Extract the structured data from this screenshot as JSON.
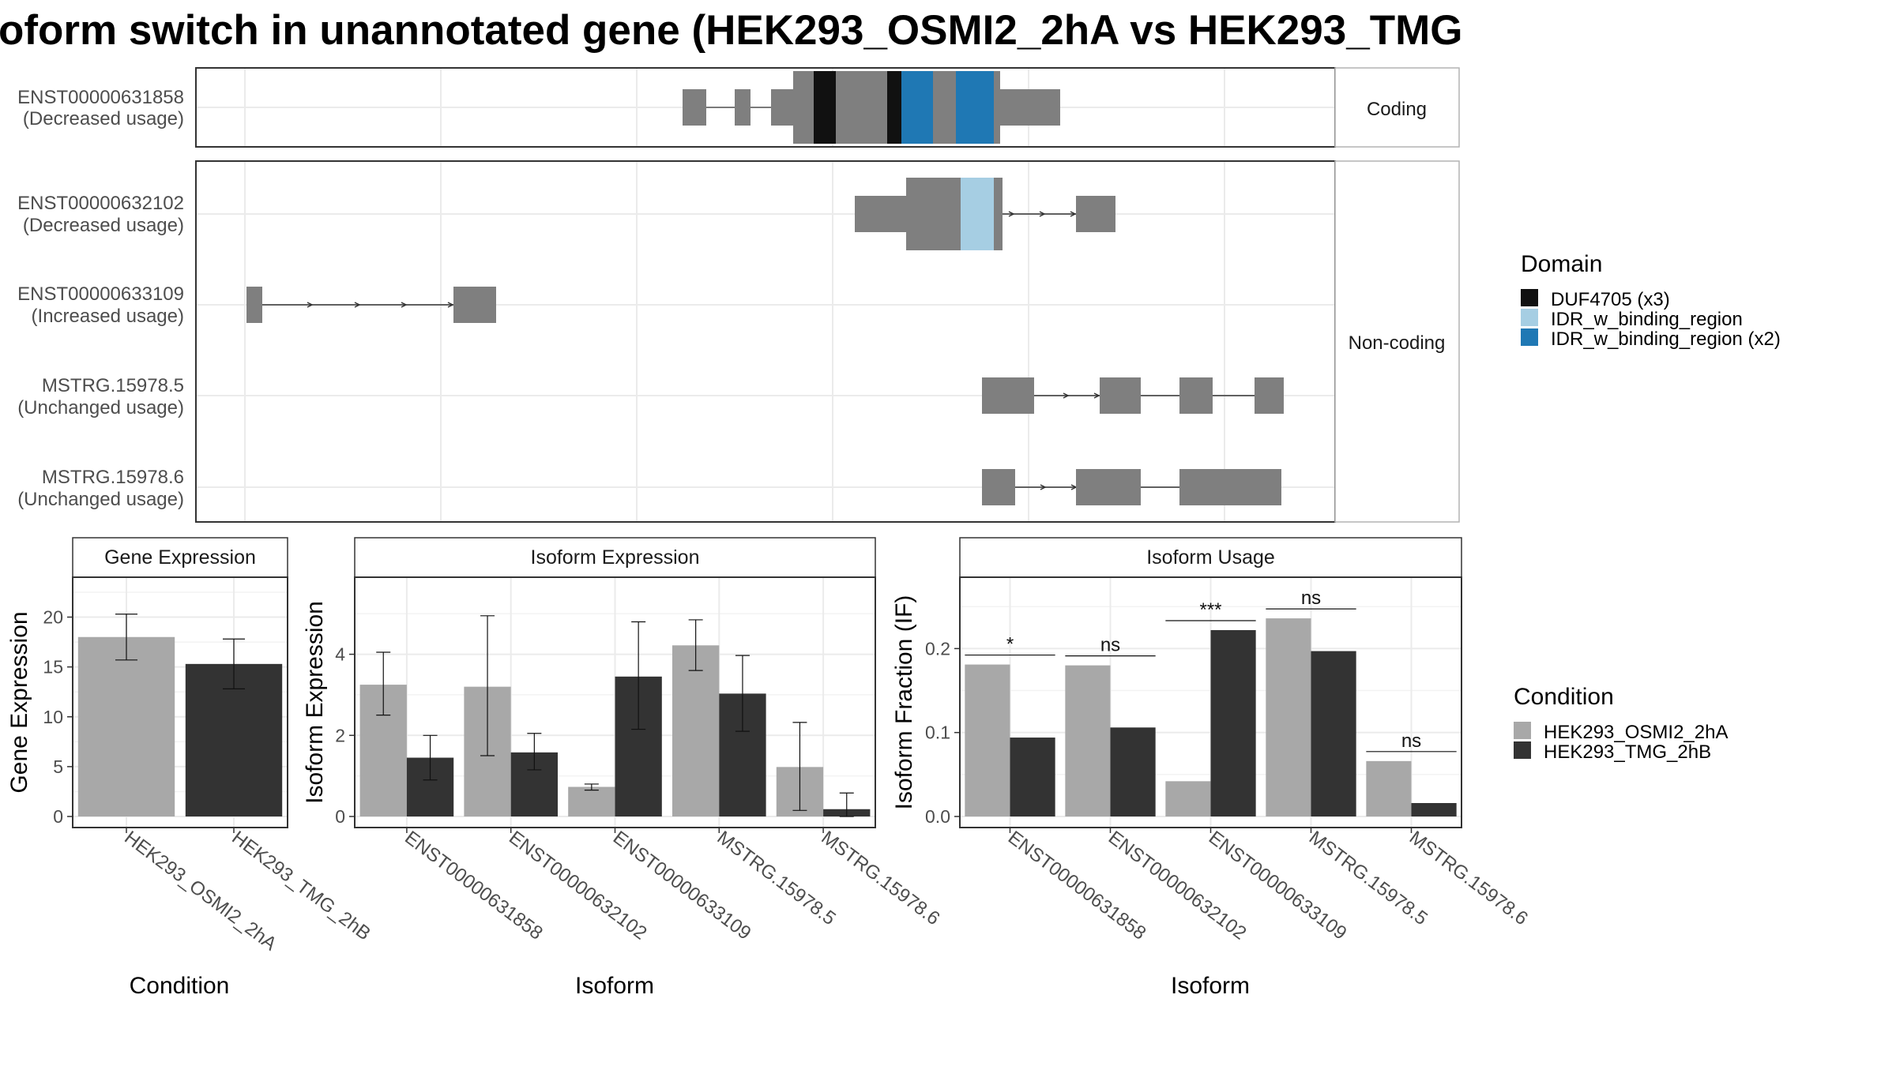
{
  "title": "oform switch in unannotated gene (HEK293_OSMI2_2hA vs HEK293_TMG",
  "colors": {
    "intron_box": "#7f7f7f",
    "cond_a": "#a8a8a8",
    "cond_b": "#333333",
    "strip_bg": "#ffffff",
    "grid": "#ebebeb"
  },
  "structure": {
    "coding_strip": "Coding",
    "noncoding_strip": "Non-coding",
    "isoforms": [
      {
        "id": "ENST00000631858",
        "usage": "(Decreased usage)"
      },
      {
        "id": "ENST00000632102",
        "usage": "(Decreased usage)"
      },
      {
        "id": "ENST00000633109",
        "usage": "(Increased usage)"
      },
      {
        "id": "MSTRG.15978.5",
        "usage": "(Unchanged usage)"
      },
      {
        "id": "MSTRG.15978.6",
        "usage": "(Unchanged usage)"
      }
    ]
  },
  "domain_legend": {
    "title": "Domain",
    "items": [
      {
        "label": "DUF4705 (x3)",
        "color": "#111111"
      },
      {
        "label": "IDR_w_binding_region",
        "color": "#a6cee3"
      },
      {
        "label": "IDR_w_binding_region (x2)",
        "color": "#1f78b4"
      }
    ]
  },
  "condition_legend": {
    "title": "Condition",
    "items": [
      {
        "label": "HEK293_OSMI2_2hA",
        "color": "#a8a8a8"
      },
      {
        "label": "HEK293_TMG_2hB",
        "color": "#333333"
      }
    ]
  },
  "chart_data": [
    {
      "type": "bar",
      "strip": "Gene Expression",
      "xlabel": "Condition",
      "ylabel": "Gene Expression",
      "ylim": [
        0,
        24
      ],
      "yticks": [
        0,
        5,
        10,
        15,
        20
      ],
      "categories": [
        "HEK293_OSMI2_2hA",
        "HEK293_TMG_2hB"
      ],
      "values": [
        18.0,
        15.3
      ],
      "error_low": [
        15.7,
        12.8
      ],
      "error_high": [
        20.3,
        17.8
      ]
    },
    {
      "type": "bar",
      "strip": "Isoform Expression",
      "xlabel": "Isoform",
      "ylabel": "Isoform Expression",
      "ylim": [
        0,
        5.9
      ],
      "yticks": [
        0,
        2,
        4
      ],
      "categories": [
        "ENST00000631858",
        "ENST00000632102",
        "ENST00000633109",
        "MSTRG.15978.5",
        "MSTRG.15978.6"
      ],
      "series": [
        {
          "name": "HEK293_OSMI2_2hA",
          "values": [
            3.25,
            3.2,
            0.73,
            4.22,
            1.22
          ],
          "error_low": [
            2.5,
            1.5,
            0.65,
            3.6,
            0.15
          ],
          "error_high": [
            4.05,
            4.95,
            0.8,
            4.85,
            2.32
          ]
        },
        {
          "name": "HEK293_TMG_2hB",
          "values": [
            1.45,
            1.58,
            3.45,
            3.03,
            0.18
          ],
          "error_low": [
            0.9,
            1.15,
            2.15,
            2.1,
            0.0
          ],
          "error_high": [
            2.0,
            2.05,
            4.8,
            3.97,
            0.58
          ]
        }
      ]
    },
    {
      "type": "bar",
      "strip": "Isoform Usage",
      "xlabel": "Isoform",
      "ylabel": "Isoform Fraction (IF)",
      "ylim": [
        0,
        0.285
      ],
      "yticks": [
        0.0,
        0.1,
        0.2
      ],
      "ytick_labels": [
        "0.0",
        "0.1",
        "0.2"
      ],
      "categories": [
        "ENST00000631858",
        "ENST00000632102",
        "ENST00000633109",
        "MSTRG.15978.5",
        "MSTRG.15978.6"
      ],
      "series": [
        {
          "name": "HEK293_OSMI2_2hA",
          "values": [
            0.181,
            0.18,
            0.042,
            0.236,
            0.066
          ]
        },
        {
          "name": "HEK293_TMG_2hB",
          "values": [
            0.094,
            0.106,
            0.222,
            0.197,
            0.016
          ]
        }
      ],
      "significance": [
        "*",
        "ns",
        "***",
        "ns",
        "ns"
      ]
    }
  ]
}
